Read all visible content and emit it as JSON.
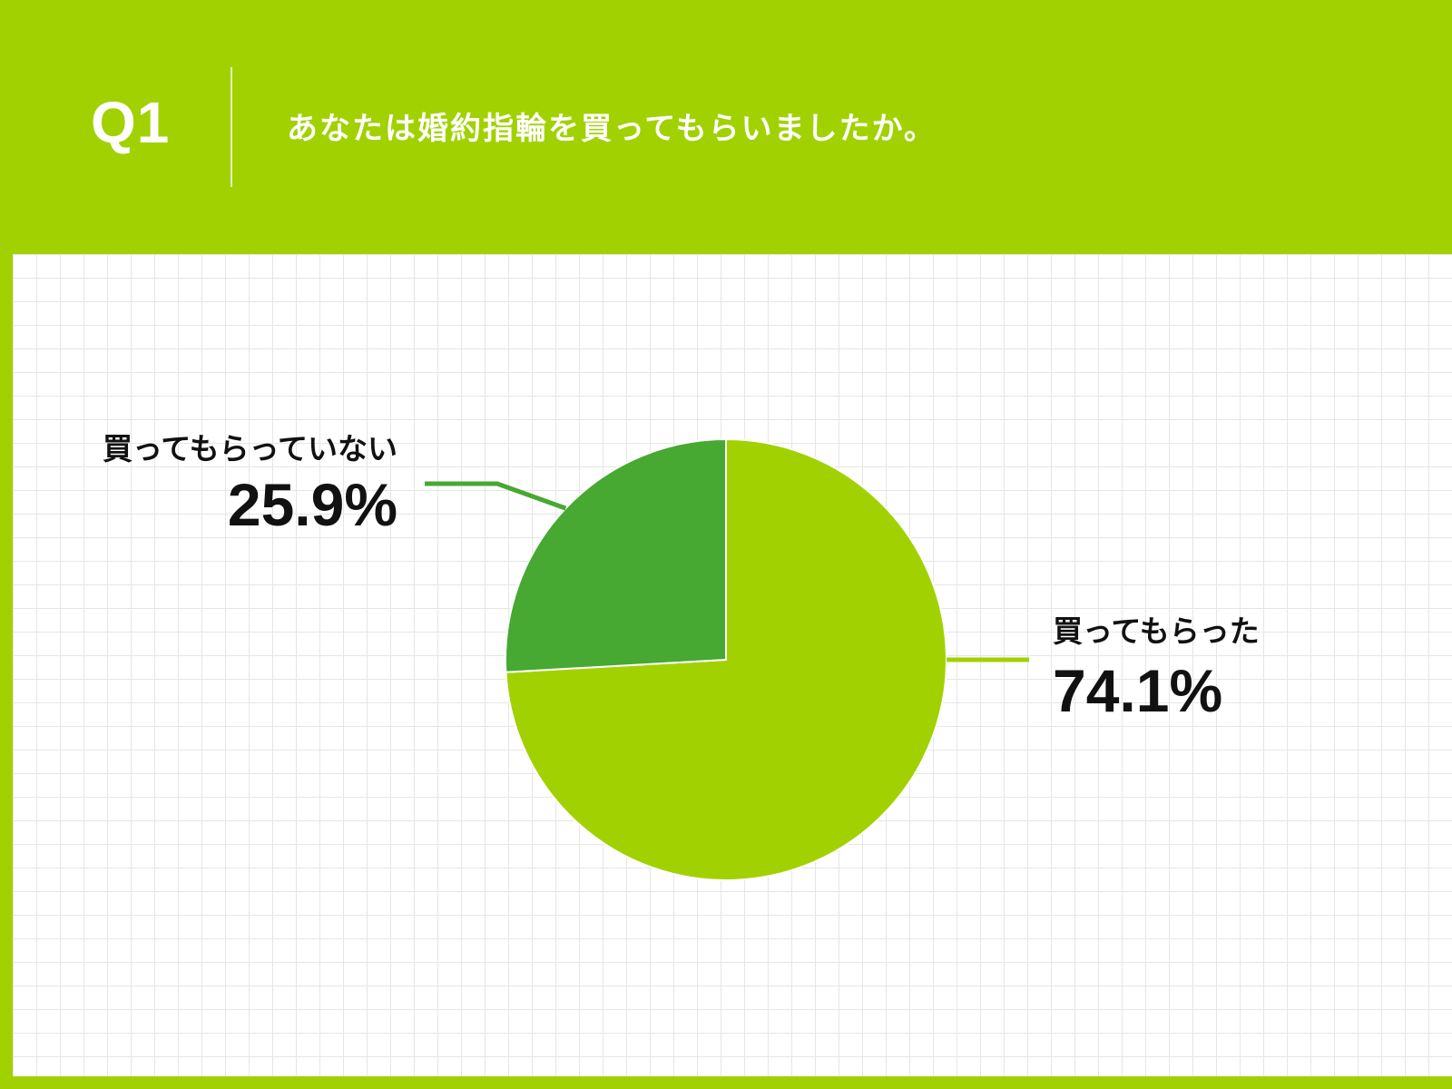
{
  "header": {
    "question_number": "Q1",
    "question_text": "あなたは婚約指輪を買ってもらいましたか。"
  },
  "chart_data": {
    "type": "pie",
    "title": "",
    "categories": [
      "買ってもらった",
      "買ってもらっていない"
    ],
    "values": [
      74.1,
      25.9
    ],
    "value_labels": [
      "74.1%",
      "25.9%"
    ],
    "colors": [
      "#a2d102",
      "#47a832"
    ],
    "start": "12 o'clock, clockwise"
  }
}
